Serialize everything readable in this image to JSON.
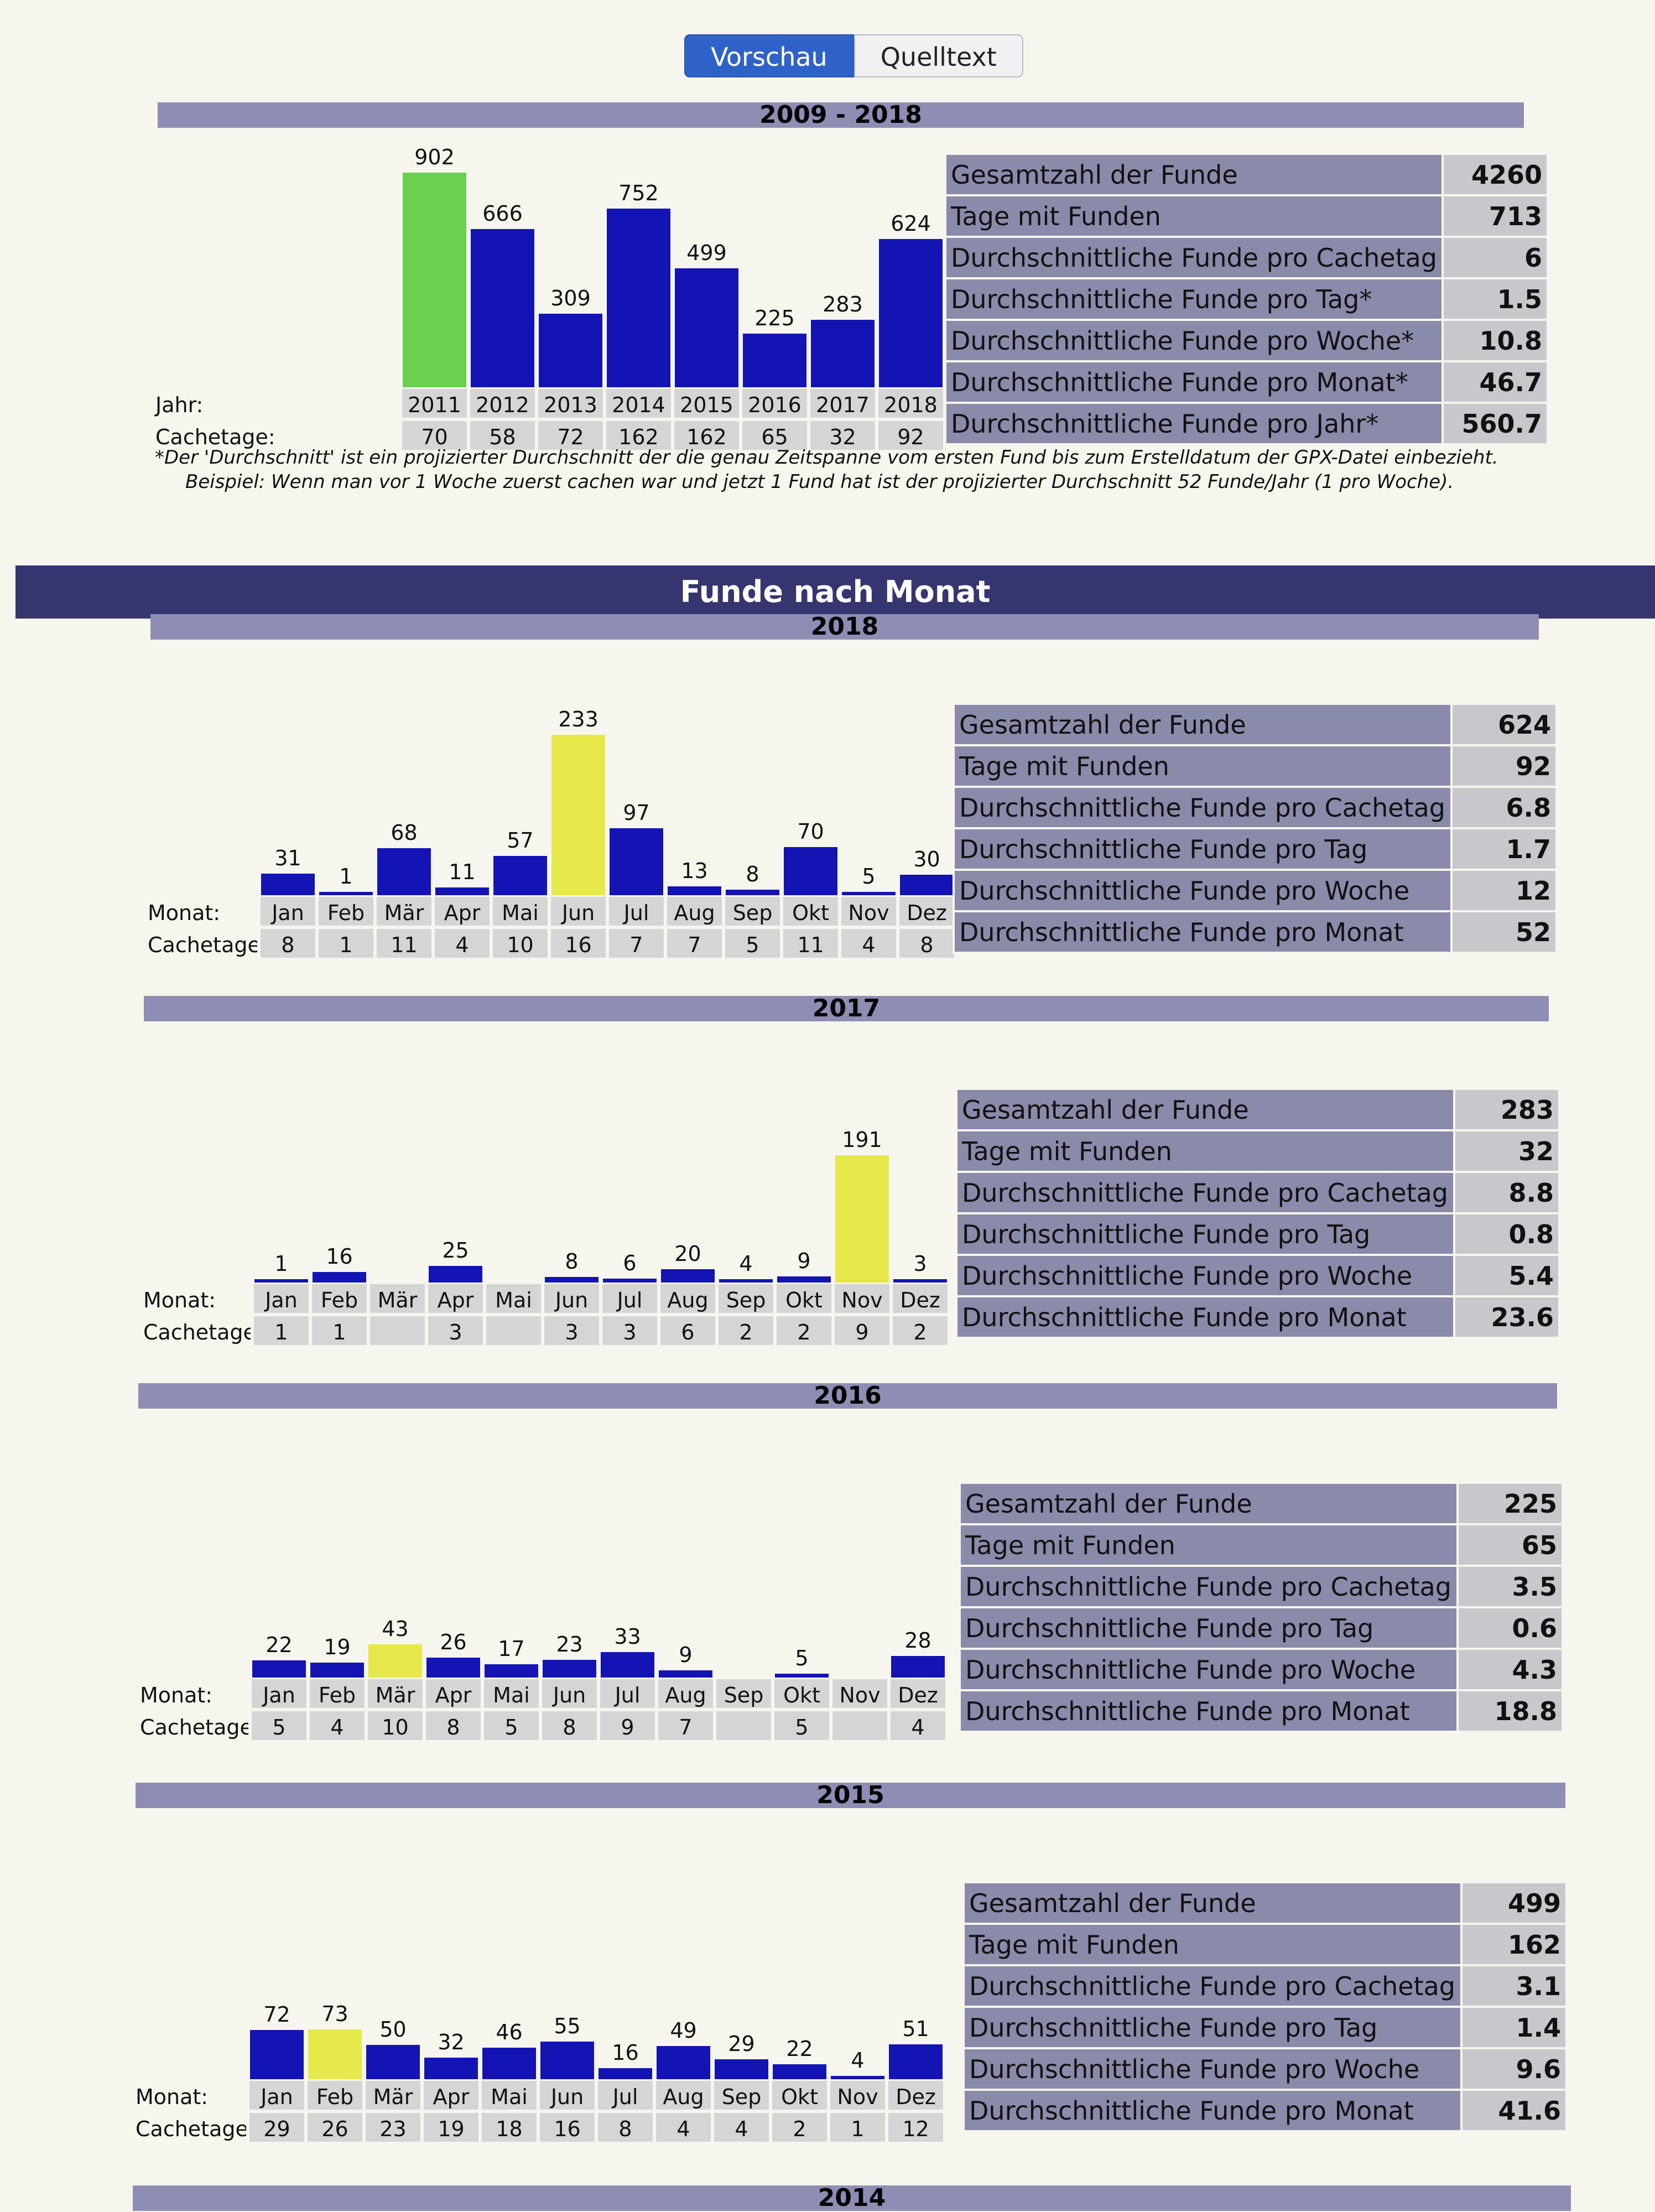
{
  "tabs": {
    "preview": "Vorschau",
    "source": "Quelltext"
  },
  "labels": {
    "year": "Jahr:",
    "month": "Monat:",
    "cachedays": "Cachetage:"
  },
  "overview": {
    "title": "2009 - 2018",
    "years": [
      "2011",
      "2012",
      "2013",
      "2014",
      "2015",
      "2016",
      "2017",
      "2018"
    ],
    "finds": [
      902,
      666,
      309,
      752,
      499,
      225,
      283,
      624
    ],
    "cachedays": [
      "70",
      "58",
      "72",
      "162",
      "162",
      "65",
      "32",
      "92"
    ],
    "highlight": [
      true,
      false,
      false,
      false,
      false,
      false,
      false,
      false
    ],
    "stats": [
      {
        "label": "Gesamtzahl der Funde",
        "value": "4260"
      },
      {
        "label": "Tage mit Funden",
        "value": "713"
      },
      {
        "label": "Durchschnittliche Funde pro Cachetag",
        "value": "6"
      },
      {
        "label": "Durchschnittliche Funde pro Tag*",
        "value": "1.5"
      },
      {
        "label": "Durchschnittliche Funde pro Woche*",
        "value": "10.8"
      },
      {
        "label": "Durchschnittliche Funde pro Monat*",
        "value": "46.7"
      },
      {
        "label": "Durchschnittliche Funde pro Jahr*",
        "value": "560.7"
      }
    ],
    "footnote": [
      "*Der 'Durchschnitt' ist ein projizierter Durchschnitt der die genau Zeitspanne vom ersten Fund bis zum Erstelldatum der GPX-Datei einbezieht.",
      "Beispiel: Wenn man vor 1 Woche zuerst cachen war und jetzt 1 Fund hat ist der projizierter Durchschnitt 52 Funde/Jahr (1 pro Woche)."
    ]
  },
  "monthly_title": "Funde nach Monat",
  "months": [
    "Jan",
    "Feb",
    "Mär",
    "Apr",
    "Mai",
    "Jun",
    "Jul",
    "Aug",
    "Sep",
    "Okt",
    "Nov",
    "Dez"
  ],
  "monthly": [
    {
      "year": "2018",
      "finds": [
        31,
        1,
        68,
        11,
        57,
        233,
        97,
        13,
        8,
        70,
        5,
        30
      ],
      "cachedays": [
        "8",
        "1",
        "11",
        "4",
        "10",
        "16",
        "7",
        "7",
        "5",
        "11",
        "4",
        "8"
      ],
      "highlight": 5,
      "stats": [
        {
          "label": "Gesamtzahl der Funde",
          "value": "624"
        },
        {
          "label": "Tage mit Funden",
          "value": "92"
        },
        {
          "label": "Durchschnittliche Funde pro Cachetag",
          "value": "6.8"
        },
        {
          "label": "Durchschnittliche Funde pro Tag",
          "value": "1.7"
        },
        {
          "label": "Durchschnittliche Funde pro Woche",
          "value": "12"
        },
        {
          "label": "Durchschnittliche Funde pro Monat",
          "value": "52"
        }
      ]
    },
    {
      "year": "2017",
      "finds": [
        1,
        16,
        null,
        25,
        null,
        8,
        6,
        20,
        4,
        9,
        191,
        3
      ],
      "cachedays": [
        "1",
        "1",
        "",
        "3",
        "",
        "3",
        "3",
        "6",
        "2",
        "2",
        "9",
        "2"
      ],
      "highlight": 10,
      "stats": [
        {
          "label": "Gesamtzahl der Funde",
          "value": "283"
        },
        {
          "label": "Tage mit Funden",
          "value": "32"
        },
        {
          "label": "Durchschnittliche Funde pro Cachetag",
          "value": "8.8"
        },
        {
          "label": "Durchschnittliche Funde pro Tag",
          "value": "0.8"
        },
        {
          "label": "Durchschnittliche Funde pro Woche",
          "value": "5.4"
        },
        {
          "label": "Durchschnittliche Funde pro Monat",
          "value": "23.6"
        }
      ]
    },
    {
      "year": "2016",
      "finds": [
        22,
        19,
        43,
        26,
        17,
        23,
        33,
        9,
        null,
        5,
        null,
        28
      ],
      "cachedays": [
        "5",
        "4",
        "10",
        "8",
        "5",
        "8",
        "9",
        "7",
        "",
        "5",
        "",
        "4"
      ],
      "highlight": 2,
      "stats": [
        {
          "label": "Gesamtzahl der Funde",
          "value": "225"
        },
        {
          "label": "Tage mit Funden",
          "value": "65"
        },
        {
          "label": "Durchschnittliche Funde pro Cachetag",
          "value": "3.5"
        },
        {
          "label": "Durchschnittliche Funde pro Tag",
          "value": "0.6"
        },
        {
          "label": "Durchschnittliche Funde pro Woche",
          "value": "4.3"
        },
        {
          "label": "Durchschnittliche Funde pro Monat",
          "value": "18.8"
        }
      ]
    },
    {
      "year": "2015",
      "finds": [
        72,
        73,
        50,
        32,
        46,
        55,
        16,
        49,
        29,
        22,
        4,
        51
      ],
      "cachedays": [
        "29",
        "26",
        "23",
        "19",
        "18",
        "16",
        "8",
        "4",
        "4",
        "2",
        "1",
        "12"
      ],
      "highlight": 1,
      "stats": [
        {
          "label": "Gesamtzahl der Funde",
          "value": "499"
        },
        {
          "label": "Tage mit Funden",
          "value": "162"
        },
        {
          "label": "Durchschnittliche Funde pro Cachetag",
          "value": "3.1"
        },
        {
          "label": "Durchschnittliche Funde pro Tag",
          "value": "1.4"
        },
        {
          "label": "Durchschnittliche Funde pro Woche",
          "value": "9.6"
        },
        {
          "label": "Durchschnittliche Funde pro Monat",
          "value": "41.6"
        }
      ]
    },
    {
      "year": "2014"
    }
  ],
  "colors": {
    "bar": "#1414b4",
    "highlight_overview": "#6ad04e",
    "highlight_month": "#e6e84a",
    "header": "#36356f"
  }
}
